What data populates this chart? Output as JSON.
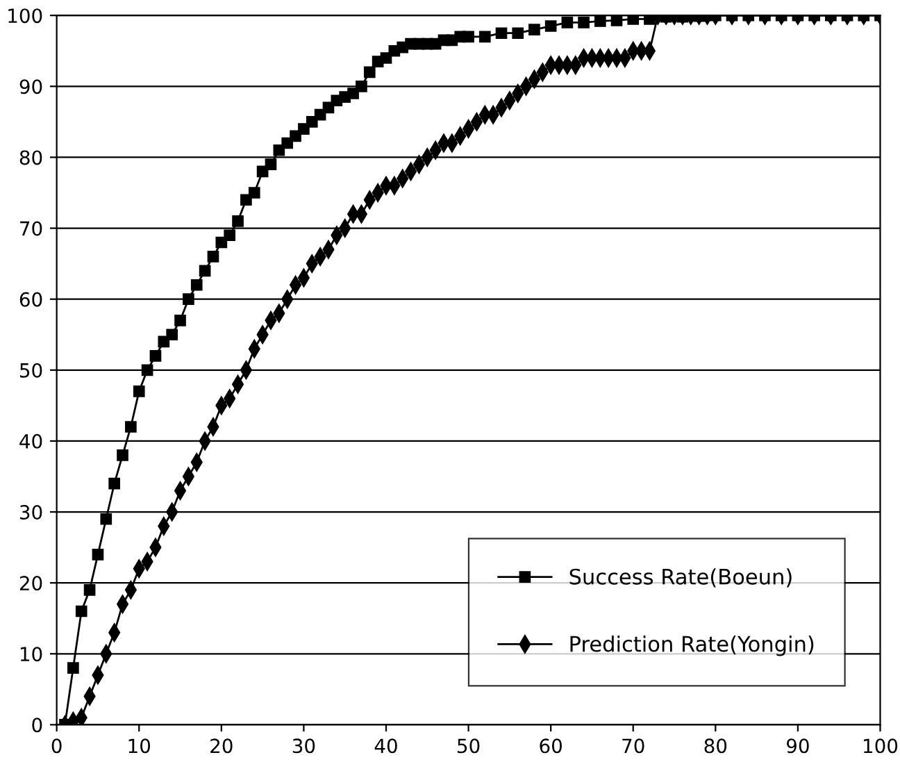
{
  "chart_data": {
    "type": "line",
    "xlim": [
      0,
      100
    ],
    "ylim": [
      0,
      100
    ],
    "xticks": [
      0,
      10,
      20,
      30,
      40,
      50,
      60,
      70,
      80,
      90,
      100
    ],
    "yticks": [
      0,
      10,
      20,
      30,
      40,
      50,
      60,
      70,
      80,
      90,
      100
    ],
    "grid": "y",
    "legend": "bottom right",
    "series": [
      {
        "name": "Success Rate(Boeun)",
        "color": "#000000",
        "marker": "square",
        "x": [
          1,
          2,
          3,
          4,
          5,
          6,
          7,
          8,
          9,
          10,
          11,
          12,
          13,
          14,
          15,
          16,
          17,
          18,
          19,
          20,
          21,
          22,
          23,
          24,
          25,
          26,
          27,
          28,
          29,
          30,
          31,
          32,
          33,
          34,
          35,
          36,
          37,
          38,
          39,
          40,
          41,
          42,
          43,
          44,
          45,
          46,
          47,
          48,
          49,
          50,
          52,
          54,
          56,
          58,
          60,
          62,
          64,
          66,
          68,
          70,
          72,
          74,
          76,
          78,
          80,
          82,
          84,
          86,
          88,
          90,
          92,
          94,
          96,
          98,
          100
        ],
        "values": [
          0,
          8,
          16,
          19,
          24,
          29,
          34,
          38,
          42,
          47,
          50,
          52,
          54,
          55,
          57,
          60,
          62,
          64,
          66,
          68,
          69,
          71,
          74,
          75,
          78,
          79,
          81,
          82,
          83,
          84,
          85,
          86,
          87,
          88,
          88.5,
          89,
          90,
          92,
          93.5,
          94,
          95,
          95.5,
          96,
          96,
          96,
          96,
          96.5,
          96.5,
          97,
          97,
          97,
          97.5,
          97.5,
          98,
          98.5,
          99,
          99,
          99.2,
          99.3,
          99.5,
          99.5,
          99.8,
          99.8,
          99.9,
          100,
          100,
          100,
          100,
          100,
          100,
          100,
          100,
          100,
          100,
          100
        ]
      },
      {
        "name": "Prediction Rate(Yongin)",
        "color": "#000000",
        "marker": "diamond",
        "x": [
          1,
          2,
          3,
          4,
          5,
          6,
          7,
          8,
          9,
          10,
          11,
          12,
          13,
          14,
          15,
          16,
          17,
          18,
          19,
          20,
          21,
          22,
          23,
          24,
          25,
          26,
          27,
          28,
          29,
          30,
          31,
          32,
          33,
          34,
          35,
          36,
          37,
          38,
          39,
          40,
          41,
          42,
          43,
          44,
          45,
          46,
          47,
          48,
          49,
          50,
          51,
          52,
          53,
          54,
          55,
          56,
          57,
          58,
          59,
          60,
          61,
          62,
          63,
          64,
          65,
          66,
          67,
          68,
          69,
          70,
          71,
          72,
          73,
          74,
          75,
          76,
          77,
          78,
          79,
          80,
          82,
          84,
          86,
          88,
          90,
          92,
          94,
          96,
          98,
          100
        ],
        "values": [
          0,
          0.5,
          1,
          4,
          7,
          10,
          13,
          17,
          19,
          22,
          23,
          25,
          28,
          30,
          33,
          35,
          37,
          40,
          42,
          45,
          46,
          48,
          50,
          53,
          55,
          57,
          58,
          60,
          62,
          63,
          65,
          66,
          67,
          69,
          70,
          72,
          72,
          74,
          75,
          76,
          76,
          77,
          78,
          79,
          80,
          81,
          82,
          82,
          83,
          84,
          85,
          86,
          86,
          87,
          88,
          89,
          90,
          91,
          92,
          93,
          93,
          93,
          93,
          94,
          94,
          94,
          94,
          94,
          94,
          95,
          95,
          95,
          100,
          100,
          100,
          100,
          100,
          100,
          100,
          100,
          100,
          100,
          100,
          100,
          100,
          100,
          100,
          100,
          100,
          100
        ]
      }
    ]
  }
}
